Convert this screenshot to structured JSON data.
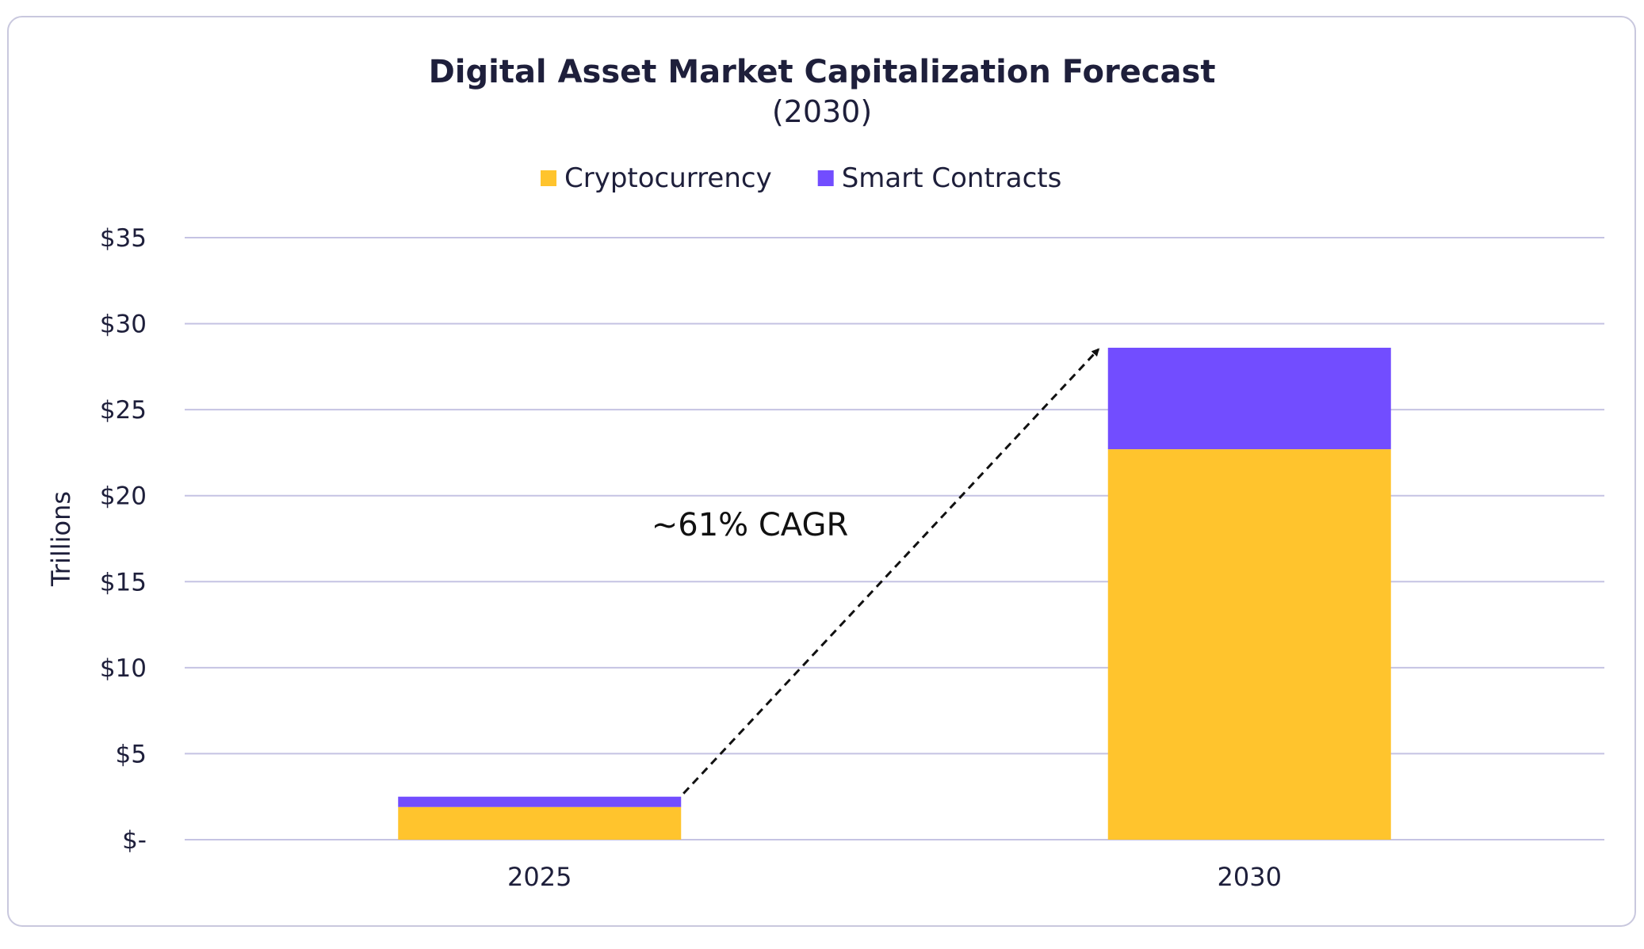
{
  "chart_data": {
    "type": "bar",
    "stacked": true,
    "title": "Digital Asset Market Capitalization Forecast",
    "subtitle": "(2030)",
    "xlabel": "",
    "ylabel": "Trillions",
    "categories": [
      "2025",
      "2030"
    ],
    "series": [
      {
        "name": "Cryptocurrency",
        "color": "#ffc42d",
        "values": [
          1.9,
          22.7
        ]
      },
      {
        "name": "Smart Contracts",
        "color": "#724dff",
        "values": [
          0.6,
          5.9
        ]
      }
    ],
    "ylim": [
      0,
      35
    ],
    "yticks": [
      0,
      5,
      10,
      15,
      20,
      25,
      30,
      35
    ],
    "ytick_labels": [
      "$-",
      "$5",
      "$10",
      "$15",
      "$20",
      "$25",
      "$30",
      "$35"
    ],
    "grid": true,
    "gridline_color": "#c5c3e3",
    "legend_position": "top-center",
    "annotation": {
      "text": "~61% CAGR",
      "arrow_from": "2025",
      "arrow_to": "2030"
    }
  }
}
